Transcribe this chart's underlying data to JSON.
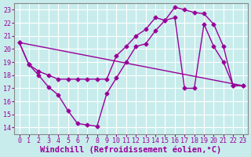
{
  "xlabel": "Windchill (Refroidissement éolien,°C)",
  "bg_color": "#c8ecec",
  "line_color": "#990099",
  "grid_color": "#ffffff",
  "xlim": [
    -0.5,
    23.5
  ],
  "ylim": [
    13.5,
    23.5
  ],
  "xticks": [
    0,
    1,
    2,
    3,
    4,
    5,
    6,
    7,
    8,
    9,
    10,
    11,
    12,
    13,
    14,
    15,
    16,
    17,
    18,
    19,
    20,
    21,
    22,
    23
  ],
  "yticks": [
    14,
    15,
    16,
    17,
    18,
    19,
    20,
    21,
    22,
    23
  ],
  "line1_x": [
    0,
    1,
    2,
    3,
    4,
    5,
    6,
    7,
    8,
    9,
    10,
    11,
    12,
    13,
    14,
    15,
    16,
    17,
    18,
    19,
    20,
    21,
    22,
    23
  ],
  "line1_y": [
    20.5,
    18.8,
    18.0,
    17.1,
    16.5,
    15.3,
    14.3,
    14.2,
    14.1,
    16.6,
    17.8,
    19.0,
    20.2,
    20.4,
    21.4,
    22.2,
    22.4,
    17.0,
    17.0,
    21.9,
    20.2,
    19.0,
    17.2,
    17.2
  ],
  "line2_x": [
    0,
    23
  ],
  "line2_y": [
    20.5,
    17.2
  ],
  "line3_x": [
    0,
    1,
    2,
    3,
    4,
    5,
    6,
    7,
    8,
    9,
    10,
    11,
    12,
    13,
    14,
    15,
    16,
    17,
    18,
    19,
    20,
    21,
    22,
    23
  ],
  "line3_y": [
    20.5,
    18.8,
    18.3,
    18.0,
    17.7,
    17.7,
    17.7,
    17.7,
    17.7,
    17.7,
    19.5,
    20.2,
    21.0,
    21.5,
    22.4,
    22.2,
    23.2,
    23.0,
    22.8,
    22.7,
    21.9,
    20.2,
    17.2,
    17.2
  ],
  "marker": "D",
  "markersize": 2.5,
  "linewidth": 1.0,
  "xlabel_fontsize": 7.5,
  "tick_fontsize": 6.0,
  "font_family": "monospace"
}
